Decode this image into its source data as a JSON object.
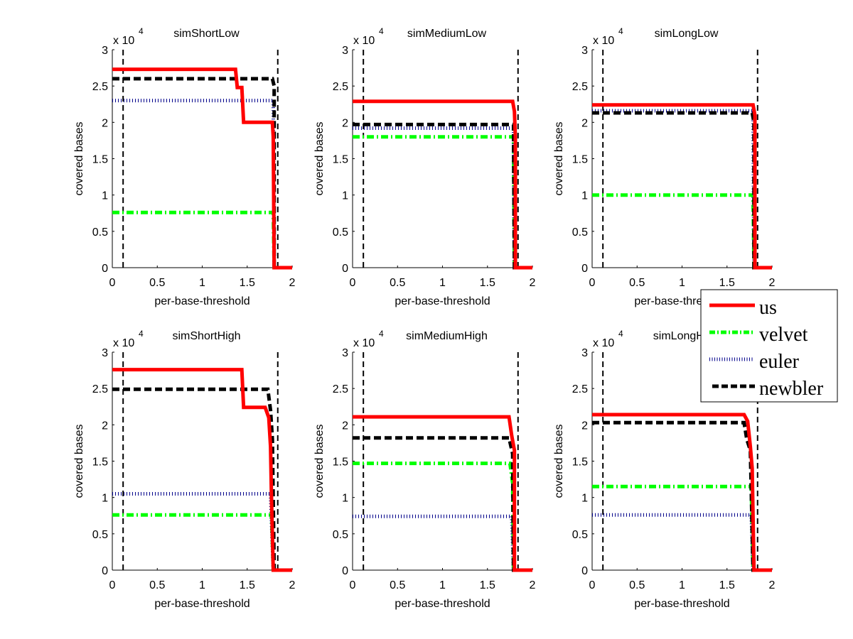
{
  "figure": {
    "legend": {
      "placement": "right",
      "entries": [
        {
          "label": "us",
          "color": "#ff0000",
          "style": "solid"
        },
        {
          "label": "velvet",
          "color": "#00ff00",
          "style": "dashdot"
        },
        {
          "label": "euler",
          "color": "#00008b",
          "style": "dotted"
        },
        {
          "label": "newbler",
          "color": "#000000",
          "style": "dashed"
        }
      ]
    }
  },
  "chart_data": [
    {
      "type": "line",
      "title": "simShortLow",
      "xlabel": "per-base-threshold",
      "ylabel": "covered bases",
      "y_exponent": "x 10",
      "y_exponent_power": "4",
      "xlim": [
        0,
        2
      ],
      "ylim": [
        0,
        3
      ],
      "xticks": [
        "0",
        "0.5",
        "1",
        "1.5",
        "2"
      ],
      "yticks": [
        "0",
        "0.5",
        "1",
        "1.5",
        "2",
        "2.5",
        "3"
      ],
      "vlines": [
        0.12,
        1.84
      ],
      "series": [
        {
          "name": "us",
          "points": [
            [
              0,
              2.73
            ],
            [
              1.37,
              2.73
            ],
            [
              1.39,
              2.48
            ],
            [
              1.44,
              2.48
            ],
            [
              1.46,
              2.0
            ],
            [
              1.78,
              2.0
            ],
            [
              1.79,
              1.8
            ],
            [
              1.8,
              0
            ],
            [
              2,
              0
            ]
          ]
        },
        {
          "name": "velvet",
          "points": [
            [
              0,
              0.76
            ],
            [
              1.79,
              0.76
            ],
            [
              1.8,
              0
            ],
            [
              2,
              0
            ]
          ]
        },
        {
          "name": "euler",
          "points": [
            [
              0,
              2.3
            ],
            [
              1.79,
              2.3
            ],
            [
              1.8,
              0
            ],
            [
              2,
              0
            ]
          ]
        },
        {
          "name": "newbler",
          "points": [
            [
              0,
              2.6
            ],
            [
              1.78,
              2.6
            ],
            [
              1.8,
              2.5
            ],
            [
              1.8,
              0
            ],
            [
              2,
              0
            ]
          ]
        }
      ]
    },
    {
      "type": "line",
      "title": "simMediumLow",
      "xlabel": "per-base-threshold",
      "ylabel": "covered bases",
      "y_exponent": "x 10",
      "y_exponent_power": "4",
      "xlim": [
        0,
        2
      ],
      "ylim": [
        0,
        3
      ],
      "xticks": [
        "0",
        "0.5",
        "1",
        "1.5",
        "2"
      ],
      "yticks": [
        "0",
        "0.5",
        "1",
        "1.5",
        "2",
        "2.5",
        "3"
      ],
      "vlines": [
        0.12,
        1.84
      ],
      "series": [
        {
          "name": "us",
          "points": [
            [
              0,
              2.29
            ],
            [
              1.78,
              2.29
            ],
            [
              1.8,
              2.15
            ],
            [
              1.81,
              1.8
            ],
            [
              1.81,
              0
            ],
            [
              2,
              0
            ]
          ]
        },
        {
          "name": "velvet",
          "points": [
            [
              0,
              1.8
            ],
            [
              1.79,
              1.8
            ],
            [
              1.8,
              0
            ],
            [
              2,
              0
            ]
          ]
        },
        {
          "name": "euler",
          "points": [
            [
              0,
              1.92
            ],
            [
              1.79,
              1.92
            ],
            [
              1.8,
              0
            ],
            [
              2,
              0
            ]
          ]
        },
        {
          "name": "newbler",
          "points": [
            [
              0,
              1.97
            ],
            [
              1.79,
              1.97
            ],
            [
              1.8,
              0
            ],
            [
              2,
              0
            ]
          ]
        }
      ]
    },
    {
      "type": "line",
      "title": "simLongLow",
      "xlabel": "per-base-threshold",
      "ylabel": "covered bases",
      "y_exponent": "x 10",
      "y_exponent_power": "4",
      "xlim": [
        0,
        2
      ],
      "ylim": [
        0,
        3
      ],
      "xticks": [
        "0",
        "0.5",
        "1",
        "1.5",
        "2"
      ],
      "yticks": [
        "0",
        "0.5",
        "1",
        "1.5",
        "2",
        "2.5",
        "3"
      ],
      "vlines": [
        0.12,
        1.84
      ],
      "series": [
        {
          "name": "us",
          "points": [
            [
              0,
              2.24
            ],
            [
              1.79,
              2.24
            ],
            [
              1.81,
              2.1
            ],
            [
              1.81,
              0
            ],
            [
              2,
              0
            ]
          ]
        },
        {
          "name": "velvet",
          "points": [
            [
              0,
              1.0
            ],
            [
              1.79,
              1.0
            ],
            [
              1.8,
              0
            ],
            [
              2,
              0
            ]
          ]
        },
        {
          "name": "euler",
          "points": [
            [
              0,
              2.16
            ],
            [
              1.79,
              2.16
            ],
            [
              1.8,
              0
            ],
            [
              2,
              0
            ]
          ]
        },
        {
          "name": "newbler",
          "points": [
            [
              0,
              2.13
            ],
            [
              1.78,
              2.13
            ],
            [
              1.8,
              2.0
            ],
            [
              1.8,
              0
            ],
            [
              2,
              0
            ]
          ]
        }
      ]
    },
    {
      "type": "line",
      "title": "simShortHigh",
      "xlabel": "per-base-threshold",
      "ylabel": "covered bases",
      "y_exponent": "x 10",
      "y_exponent_power": "4",
      "xlim": [
        0,
        2
      ],
      "ylim": [
        0,
        3
      ],
      "xticks": [
        "0",
        "0.5",
        "1",
        "1.5",
        "2"
      ],
      "yticks": [
        "0",
        "0.5",
        "1",
        "1.5",
        "2",
        "2.5",
        "3"
      ],
      "vlines": [
        0.12,
        1.84
      ],
      "series": [
        {
          "name": "us",
          "points": [
            [
              0,
              2.76
            ],
            [
              1.44,
              2.76
            ],
            [
              1.46,
              2.24
            ],
            [
              1.7,
              2.24
            ],
            [
              1.74,
              2.1
            ],
            [
              1.76,
              1.7
            ],
            [
              1.77,
              1.0
            ],
            [
              1.79,
              0
            ],
            [
              2,
              0
            ]
          ]
        },
        {
          "name": "velvet",
          "points": [
            [
              0,
              0.76
            ],
            [
              1.77,
              0.76
            ],
            [
              1.79,
              0
            ],
            [
              2,
              0
            ]
          ]
        },
        {
          "name": "euler",
          "points": [
            [
              0,
              1.05
            ],
            [
              1.76,
              1.05
            ],
            [
              1.79,
              0
            ],
            [
              2,
              0
            ]
          ]
        },
        {
          "name": "newbler",
          "points": [
            [
              0,
              2.49
            ],
            [
              1.73,
              2.49
            ],
            [
              1.76,
              2.2
            ],
            [
              1.78,
              1.8
            ],
            [
              1.8,
              0
            ],
            [
              2,
              0
            ]
          ]
        }
      ]
    },
    {
      "type": "line",
      "title": "simMediumHigh",
      "xlabel": "per-base-threshold",
      "ylabel": "covered bases",
      "y_exponent": "x 10",
      "y_exponent_power": "4",
      "xlim": [
        0,
        2
      ],
      "ylim": [
        0,
        3
      ],
      "xticks": [
        "0",
        "0.5",
        "1",
        "1.5",
        "2"
      ],
      "yticks": [
        "0",
        "0.5",
        "1",
        "1.5",
        "2",
        "2.5",
        "3"
      ],
      "vlines": [
        0.12,
        1.84
      ],
      "series": [
        {
          "name": "us",
          "points": [
            [
              0,
              2.11
            ],
            [
              1.74,
              2.11
            ],
            [
              1.77,
              1.85
            ],
            [
              1.8,
              1.65
            ],
            [
              1.8,
              0
            ],
            [
              2,
              0
            ]
          ]
        },
        {
          "name": "velvet",
          "points": [
            [
              0,
              1.47
            ],
            [
              1.75,
              1.47
            ],
            [
              1.78,
              1.2
            ],
            [
              1.79,
              0
            ],
            [
              2,
              0
            ]
          ]
        },
        {
          "name": "euler",
          "points": [
            [
              0,
              0.74
            ],
            [
              1.77,
              0.74
            ],
            [
              1.79,
              0
            ],
            [
              2,
              0
            ]
          ]
        },
        {
          "name": "newbler",
          "points": [
            [
              0,
              1.82
            ],
            [
              1.74,
              1.82
            ],
            [
              1.78,
              1.6
            ],
            [
              1.79,
              0
            ],
            [
              2,
              0
            ]
          ]
        }
      ]
    },
    {
      "type": "line",
      "title": "simLongHigh",
      "xlabel": "per-base-threshold",
      "ylabel": "covered bases",
      "y_exponent": "x 10",
      "y_exponent_power": "4",
      "xlim": [
        0,
        2
      ],
      "ylim": [
        0,
        3
      ],
      "xticks": [
        "0",
        "0.5",
        "1",
        "1.5",
        "2"
      ],
      "yticks": [
        "0",
        "0.5",
        "1",
        "1.5",
        "2",
        "2.5",
        "3"
      ],
      "vlines": [
        0.12,
        1.84
      ],
      "series": [
        {
          "name": "us",
          "points": [
            [
              0,
              2.14
            ],
            [
              1.69,
              2.14
            ],
            [
              1.73,
              2.05
            ],
            [
              1.76,
              1.7
            ],
            [
              1.78,
              1.4
            ],
            [
              1.8,
              0
            ],
            [
              2,
              0
            ]
          ]
        },
        {
          "name": "velvet",
          "points": [
            [
              0,
              1.15
            ],
            [
              1.77,
              1.15
            ],
            [
              1.79,
              0
            ],
            [
              2,
              0
            ]
          ]
        },
        {
          "name": "euler",
          "points": [
            [
              0,
              0.76
            ],
            [
              1.77,
              0.76
            ],
            [
              1.79,
              0
            ],
            [
              2,
              0
            ]
          ]
        },
        {
          "name": "newbler",
          "points": [
            [
              0,
              2.03
            ],
            [
              1.69,
              2.03
            ],
            [
              1.72,
              1.8
            ],
            [
              1.76,
              1.65
            ],
            [
              1.79,
              0
            ],
            [
              2,
              0
            ]
          ]
        }
      ]
    }
  ]
}
